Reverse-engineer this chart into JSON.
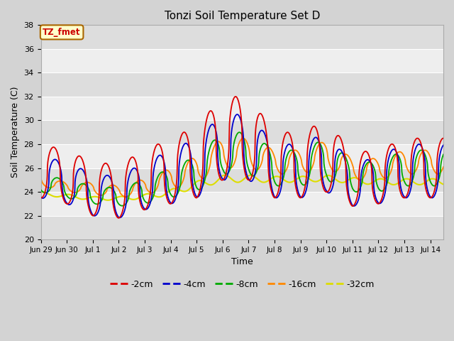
{
  "title": "Tonzi Soil Temperature Set D",
  "xlabel": "Time",
  "ylabel": "Soil Temperature (C)",
  "ylim": [
    20,
    38
  ],
  "yticks": [
    20,
    22,
    24,
    26,
    28,
    30,
    32,
    34,
    36,
    38
  ],
  "fig_bg": "#d3d3d3",
  "plot_bg": "#e8e8e8",
  "grid_color": "#ffffff",
  "annotation_text": "TZ_fmet",
  "annotation_color": "#cc0000",
  "annotation_bg": "#ffffcc",
  "annotation_border": "#aa6600",
  "series": {
    "-2cm": {
      "color": "#dd0000",
      "lw": 1.3
    },
    "-4cm": {
      "color": "#0000cc",
      "lw": 1.3
    },
    "-8cm": {
      "color": "#00aa00",
      "lw": 1.3
    },
    "-16cm": {
      "color": "#ff8800",
      "lw": 1.3
    },
    "-32cm": {
      "color": "#dddd00",
      "lw": 1.5
    }
  },
  "tick_labels": [
    "Jun 29",
    "Jun 30",
    "Jul 1",
    "Jul 2",
    "Jul 3",
    "Jul 4",
    "Jul 5",
    "Jul 6",
    "Jul 7",
    "Jul 8",
    "Jul 9",
    "Jul 10",
    "Jul 11",
    "Jul 12",
    "Jul 13",
    "Jul 14"
  ],
  "n_days": 15.5
}
